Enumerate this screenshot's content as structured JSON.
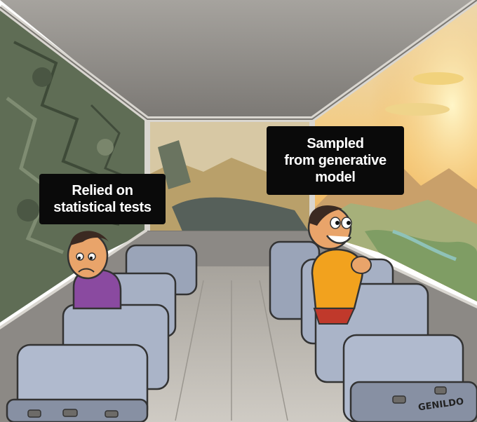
{
  "captions": {
    "left": "Relied on\nstatistical tests",
    "right": "Sampled\nfrom generative\nmodel"
  },
  "signature": "GENILDO",
  "colors": {
    "ceiling": "#8f8c88",
    "rock": "#5d6a52",
    "seat": "#a9b3c6",
    "sky_glow": "#f6d27a",
    "floor": "#bdb9b3"
  }
}
